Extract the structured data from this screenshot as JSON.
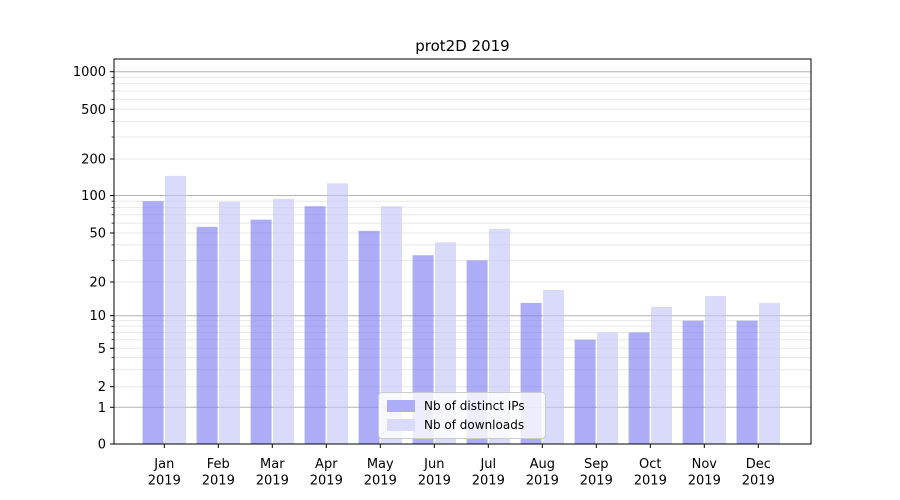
{
  "chart_data": {
    "type": "bar",
    "title": "prot2D 2019",
    "categories": [
      "Jan",
      "Feb",
      "Mar",
      "Apr",
      "May",
      "Jun",
      "Jul",
      "Aug",
      "Sep",
      "Oct",
      "Nov",
      "Dec"
    ],
    "category_second_line": "2019",
    "series": [
      {
        "name": "Nb of distinct IPs",
        "values": [
          90,
          56,
          64,
          82,
          52,
          33,
          30,
          13,
          6,
          7,
          9,
          9
        ],
        "bar_fill": "#7a7af2",
        "bar_opacity": 0.62,
        "apparent_color": "#acacf7"
      },
      {
        "name": "Nb of downloads",
        "values": [
          145,
          89,
          94,
          126,
          82,
          42,
          54,
          17,
          7,
          12,
          15,
          13
        ],
        "bar_fill": "#c3c3f7",
        "bar_opacity": 0.62,
        "apparent_color": "#dadafa"
      }
    ],
    "yscale": "symlog",
    "y_ticks": [
      0,
      1,
      2,
      5,
      10,
      20,
      50,
      100,
      200,
      500,
      1000
    ],
    "y_minor_ticks": [
      3,
      4,
      6,
      7,
      8,
      9,
      30,
      40,
      60,
      70,
      80,
      90,
      300,
      400,
      600,
      700,
      800,
      900
    ],
    "y_major_gridlines": [
      1,
      10,
      100,
      1000
    ],
    "ylim": [
      0,
      1200
    ],
    "xlabel": "",
    "ylabel": "",
    "grid": true,
    "legend_position": "lower center",
    "colors": {
      "background": "#ffffff",
      "axis": "#000000",
      "grid_major": "#b4b4b4",
      "grid_minor": "#e8e8e8",
      "tick_label": "#000000",
      "legend_border": "#cccccc"
    }
  }
}
